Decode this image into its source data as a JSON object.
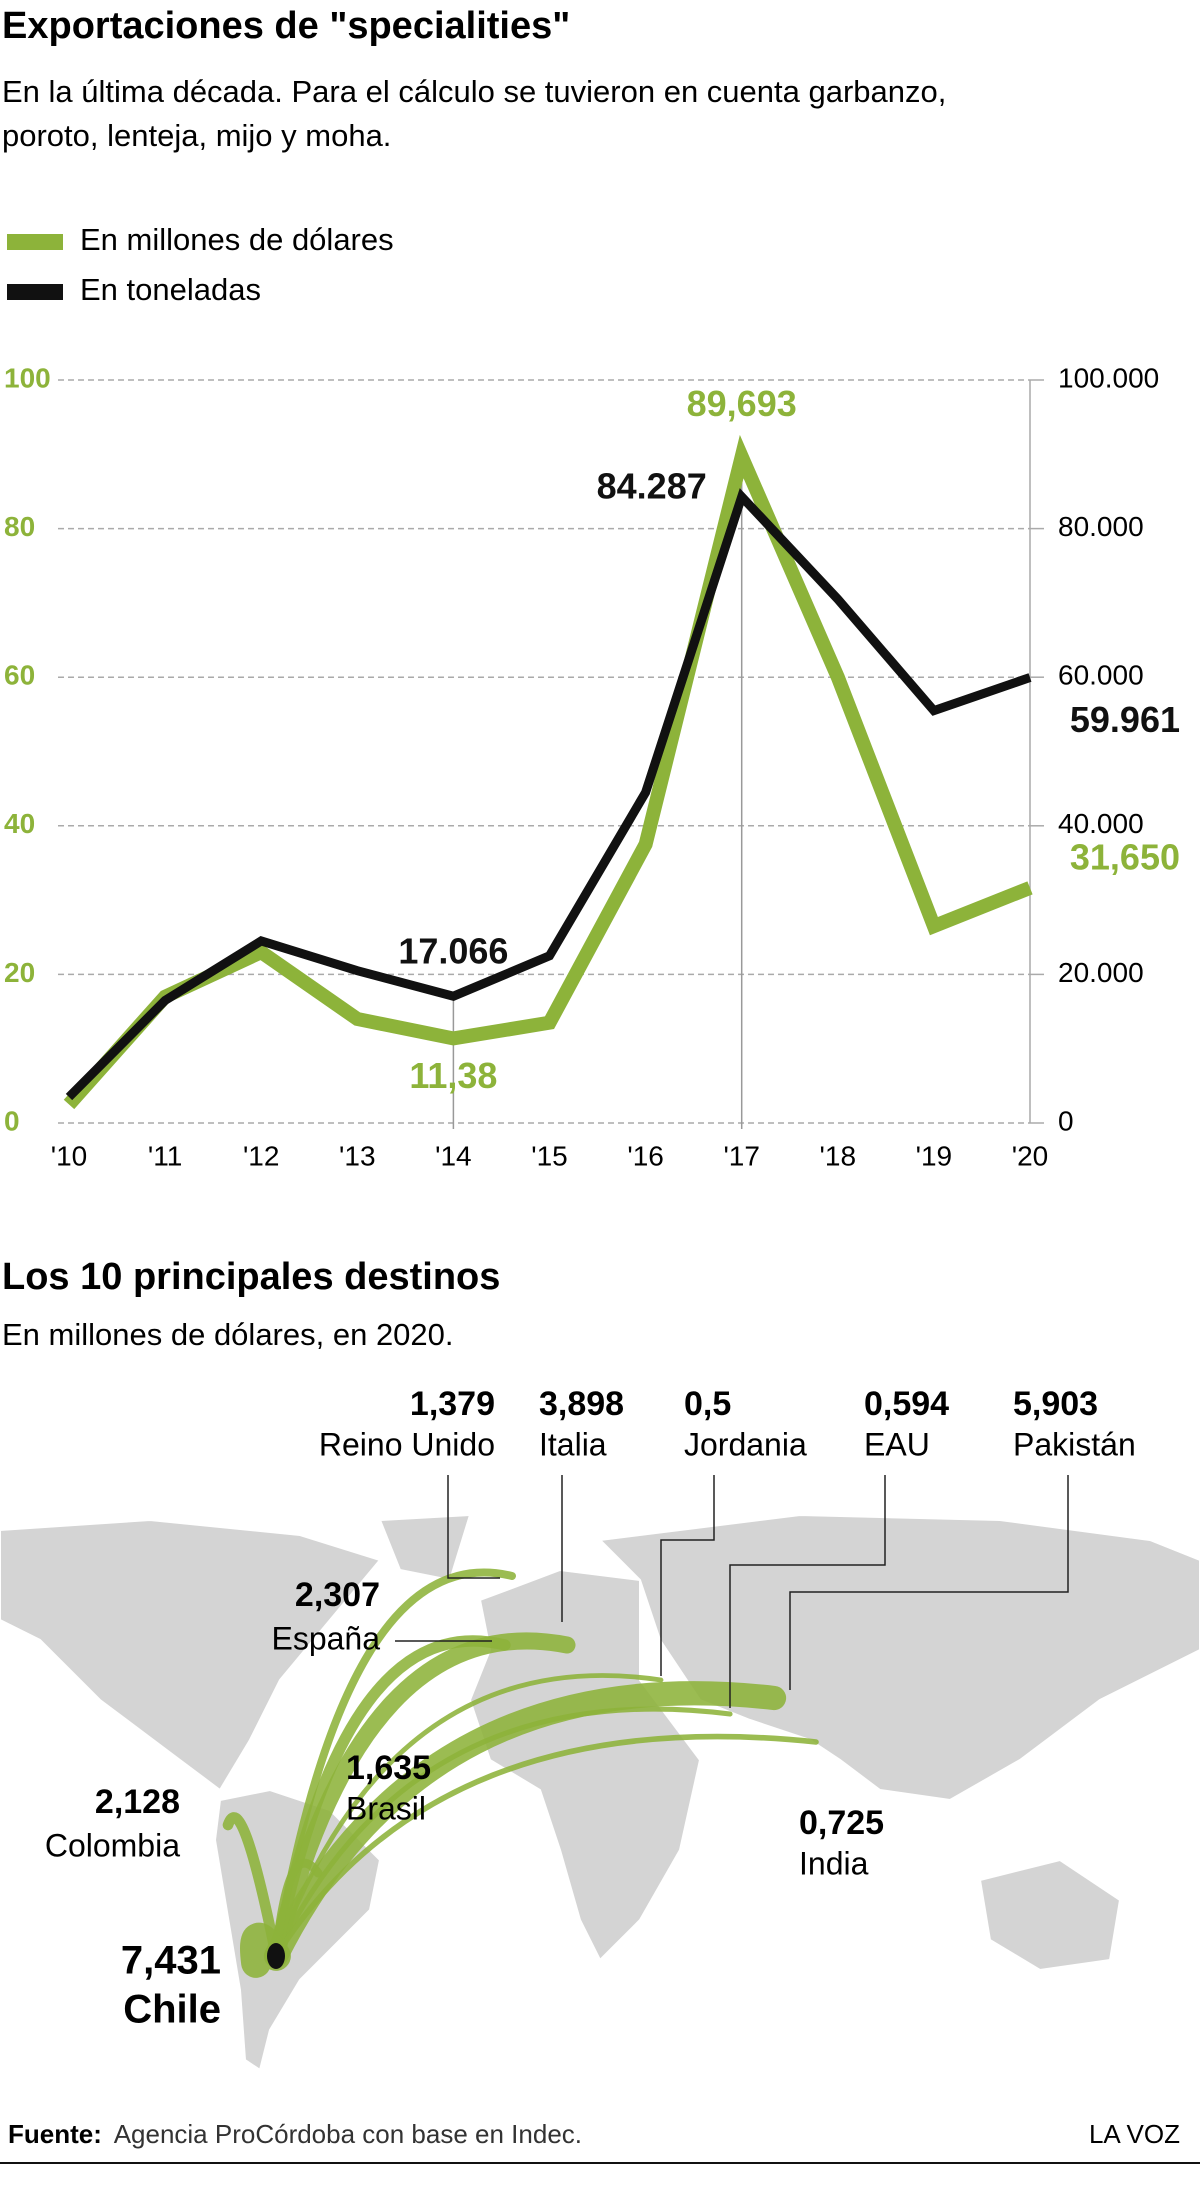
{
  "chart_data": [
    {
      "type": "line",
      "title": "Exportaciones de \"specialities\"",
      "subtitle": [
        "En la última década. Para el cálculo se tuvieron en cuenta garbanzo,",
        "poroto, lenteja, mijo y moha."
      ],
      "categories": [
        "'10",
        "'11",
        "'12",
        "'13",
        "'14",
        "'15",
        "'16",
        "'17",
        "'18",
        "'19",
        "'20"
      ],
      "series": [
        {
          "name": "En millones de dólares",
          "color": "#8db33a",
          "axis": "y",
          "values": [
            2.5,
            17,
            23,
            14,
            11.38,
            13.5,
            37.5,
            89.693,
            60,
            26.5,
            31.65
          ],
          "value_labels": [
            null,
            null,
            null,
            null,
            "11,38",
            null,
            null,
            "89,693",
            null,
            null,
            "31,650"
          ]
        },
        {
          "name": "En toneladas",
          "color": "#111111",
          "axis": "y2",
          "values": [
            3500,
            16500,
            24500,
            20500,
            17066,
            22500,
            44500,
            84287,
            70500,
            55500,
            59961
          ],
          "value_labels": [
            null,
            null,
            null,
            null,
            "17.066",
            null,
            null,
            "84.287",
            null,
            null,
            "59.961"
          ]
        }
      ],
      "ylim": [
        0,
        100
      ],
      "yticks": [
        0,
        20,
        40,
        60,
        80,
        100
      ],
      "y2lim": [
        0,
        100000
      ],
      "y2ticks": [
        0,
        {
          "value": 20000,
          "label": "20.000"
        },
        {
          "value": 40000,
          "label": "40.000"
        },
        {
          "value": 60000,
          "label": "60.000"
        },
        {
          "value": 80000,
          "label": "80.000"
        },
        {
          "value": 100000,
          "label": "100.000"
        }
      ],
      "grid": true
    },
    {
      "type": "flow",
      "title": "Los 10 principales destinos",
      "subtitle": "En millones de dólares, en 2020.",
      "destinations": [
        "Reino Unido",
        "Italia",
        "Jordania",
        "EAU",
        "Pakistán",
        "España",
        "Brasil",
        "Colombia",
        "India",
        "Chile"
      ],
      "values": [
        1.379,
        3.898,
        0.5,
        0.594,
        5.903,
        2.307,
        1.635,
        2.128,
        0.725,
        7.431
      ],
      "value_labels": [
        "1,379",
        "3,898",
        "0,5",
        "0,594",
        "5,903",
        "2,307",
        "1,635",
        "2,128",
        "0,725",
        "7,431"
      ],
      "color": "#8db33a"
    }
  ],
  "footer": {
    "source_label": "Fuente:",
    "source_text": "Agencia ProCórdoba con base en Indec.",
    "brand": "LA VOZ"
  }
}
